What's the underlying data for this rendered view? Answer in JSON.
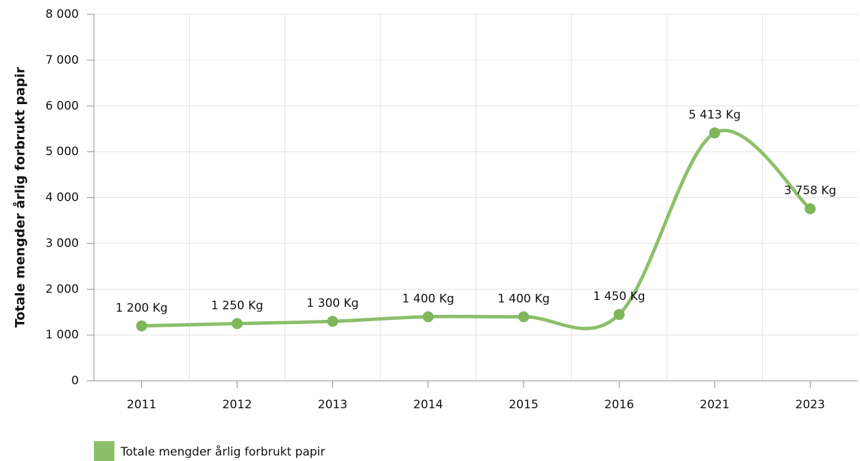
{
  "chart_data": {
    "type": "line",
    "y_label": "Totale mengder årlig forbrukt papir",
    "categories": [
      "2011",
      "2012",
      "2013",
      "2014",
      "2015",
      "2016",
      "2021",
      "2023"
    ],
    "series": [
      {
        "name": "Totale mengder årlig forbrukt papir",
        "color": "#8cbf6a",
        "values": [
          1200,
          1250,
          1300,
          1400,
          1400,
          1450,
          5413,
          3758
        ],
        "value_labels": [
          "1 200 Kg",
          "1 250 Kg",
          "1 300 Kg",
          "1 400 Kg",
          "1 400 Kg",
          "1 450 Kg",
          "5 413 Kg",
          "3 758 Kg"
        ]
      }
    ],
    "ylim": [
      0,
      8000
    ],
    "yticks": [
      0,
      {
        "value": 1000,
        "label": "1 000"
      },
      {
        "value": 2000,
        "label": "2 000"
      },
      {
        "value": 3000,
        "label": "3 000"
      },
      {
        "value": 4000,
        "label": "4 000"
      },
      {
        "value": 5000,
        "label": "5 000"
      },
      {
        "value": 6000,
        "label": "6 000"
      },
      {
        "value": 7000,
        "label": "7 000"
      },
      {
        "value": 8000,
        "label": "8 000"
      }
    ],
    "grid": true,
    "smooth": true,
    "legend": "bottom-left"
  }
}
